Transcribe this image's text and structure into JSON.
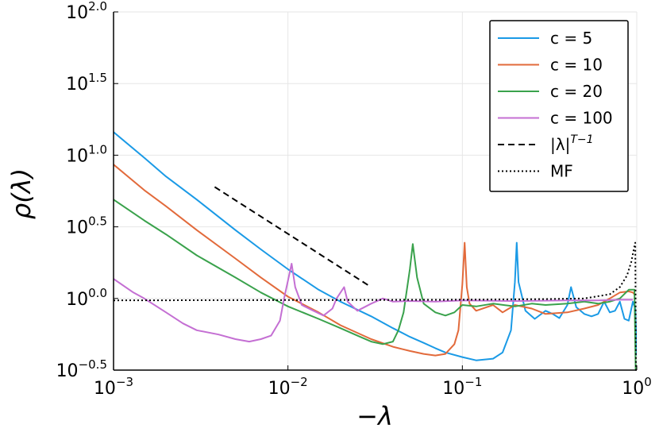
{
  "chart_data": {
    "type": "line",
    "xlabel": "−λ",
    "ylabel": "ρ(λ)",
    "x_scale": "log",
    "y_scale": "log",
    "xlim": [
      0.001,
      1
    ],
    "ylim": [
      0.3162,
      100
    ],
    "x_ticks": [
      {
        "value": 0.001,
        "base": "10",
        "exp": "−3"
      },
      {
        "value": 0.01,
        "base": "10",
        "exp": "−2"
      },
      {
        "value": 0.1,
        "base": "10",
        "exp": "−1"
      },
      {
        "value": 1,
        "base": "10",
        "exp": "0"
      }
    ],
    "y_ticks": [
      {
        "value": 0.3162,
        "base": "10",
        "exp": "−0.5"
      },
      {
        "value": 1,
        "base": "10",
        "exp": "0.0"
      },
      {
        "value": 3.162,
        "base": "10",
        "exp": "0.5"
      },
      {
        "value": 10,
        "base": "10",
        "exp": "1.0"
      },
      {
        "value": 31.62,
        "base": "10",
        "exp": "1.5"
      },
      {
        "value": 100,
        "base": "10",
        "exp": "2.0"
      }
    ],
    "grid": true,
    "legend_position": "top-right",
    "series": [
      {
        "name": "c = 5",
        "color": "#1a9ae6",
        "style": "solid",
        "points": [
          [
            0.001,
            14.5
          ],
          [
            0.0015,
            9.6
          ],
          [
            0.002,
            7.1
          ],
          [
            0.003,
            4.9
          ],
          [
            0.005,
            3.0
          ],
          [
            0.007,
            2.2
          ],
          [
            0.01,
            1.6
          ],
          [
            0.015,
            1.15
          ],
          [
            0.02,
            0.95
          ],
          [
            0.03,
            0.75
          ],
          [
            0.04,
            0.62
          ],
          [
            0.05,
            0.54
          ],
          [
            0.06,
            0.49
          ],
          [
            0.07,
            0.45
          ],
          [
            0.08,
            0.42
          ],
          [
            0.1,
            0.39
          ],
          [
            0.12,
            0.37
          ],
          [
            0.15,
            0.38
          ],
          [
            0.17,
            0.42
          ],
          [
            0.19,
            0.6
          ],
          [
            0.2,
            1.3
          ],
          [
            0.205,
            2.45
          ],
          [
            0.21,
            1.3
          ],
          [
            0.23,
            0.82
          ],
          [
            0.26,
            0.72
          ],
          [
            0.3,
            0.82
          ],
          [
            0.33,
            0.78
          ],
          [
            0.36,
            0.73
          ],
          [
            0.4,
            0.9
          ],
          [
            0.42,
            1.2
          ],
          [
            0.45,
            0.87
          ],
          [
            0.5,
            0.78
          ],
          [
            0.55,
            0.75
          ],
          [
            0.6,
            0.78
          ],
          [
            0.65,
            0.95
          ],
          [
            0.7,
            0.8
          ],
          [
            0.75,
            0.82
          ],
          [
            0.8,
            0.95
          ],
          [
            0.85,
            0.72
          ],
          [
            0.9,
            0.7
          ],
          [
            0.95,
            0.95
          ],
          [
            0.98,
            0.85
          ],
          [
            1.0,
            0.4
          ]
        ]
      },
      {
        "name": "c = 10",
        "color": "#e26a3b",
        "style": "solid",
        "points": [
          [
            0.001,
            8.6
          ],
          [
            0.0015,
            5.7
          ],
          [
            0.002,
            4.4
          ],
          [
            0.003,
            3.0
          ],
          [
            0.005,
            1.9
          ],
          [
            0.007,
            1.4
          ],
          [
            0.01,
            1.03
          ],
          [
            0.015,
            0.8
          ],
          [
            0.02,
            0.65
          ],
          [
            0.03,
            0.52
          ],
          [
            0.04,
            0.46
          ],
          [
            0.05,
            0.43
          ],
          [
            0.06,
            0.41
          ],
          [
            0.07,
            0.4
          ],
          [
            0.08,
            0.41
          ],
          [
            0.09,
            0.48
          ],
          [
            0.095,
            0.6
          ],
          [
            0.1,
            1.25
          ],
          [
            0.103,
            2.45
          ],
          [
            0.106,
            1.2
          ],
          [
            0.11,
            0.92
          ],
          [
            0.12,
            0.82
          ],
          [
            0.15,
            0.9
          ],
          [
            0.17,
            0.8
          ],
          [
            0.2,
            0.9
          ],
          [
            0.25,
            0.85
          ],
          [
            0.3,
            0.78
          ],
          [
            0.4,
            0.8
          ],
          [
            0.5,
            0.85
          ],
          [
            0.6,
            0.9
          ],
          [
            0.7,
            1.0
          ],
          [
            0.8,
            1.1
          ],
          [
            0.9,
            1.12
          ],
          [
            0.95,
            1.1
          ],
          [
            0.98,
            1.05
          ]
        ]
      },
      {
        "name": "c = 20",
        "color": "#3aa24c",
        "style": "solid",
        "points": [
          [
            0.001,
            4.9
          ],
          [
            0.0015,
            3.5
          ],
          [
            0.002,
            2.8
          ],
          [
            0.003,
            2.0
          ],
          [
            0.005,
            1.4
          ],
          [
            0.007,
            1.1
          ],
          [
            0.01,
            0.88
          ],
          [
            0.015,
            0.72
          ],
          [
            0.02,
            0.62
          ],
          [
            0.025,
            0.55
          ],
          [
            0.03,
            0.5
          ],
          [
            0.035,
            0.48
          ],
          [
            0.04,
            0.5
          ],
          [
            0.043,
            0.6
          ],
          [
            0.046,
            0.8
          ],
          [
            0.05,
            1.6
          ],
          [
            0.052,
            2.4
          ],
          [
            0.055,
            1.4
          ],
          [
            0.06,
            0.92
          ],
          [
            0.07,
            0.8
          ],
          [
            0.08,
            0.76
          ],
          [
            0.09,
            0.8
          ],
          [
            0.1,
            0.9
          ],
          [
            0.12,
            0.88
          ],
          [
            0.15,
            0.92
          ],
          [
            0.2,
            0.88
          ],
          [
            0.25,
            0.92
          ],
          [
            0.3,
            0.9
          ],
          [
            0.4,
            0.92
          ],
          [
            0.5,
            0.95
          ],
          [
            0.6,
            0.92
          ],
          [
            0.7,
            0.95
          ],
          [
            0.8,
            1.0
          ],
          [
            0.9,
            1.15
          ],
          [
            0.97,
            1.15
          ],
          [
            0.985,
            0.32
          ]
        ]
      },
      {
        "name": "c = 100",
        "color": "#c46fd3",
        "style": "solid",
        "points": [
          [
            0.001,
            1.37
          ],
          [
            0.0013,
            1.1
          ],
          [
            0.0015,
            1.0
          ],
          [
            0.002,
            0.8
          ],
          [
            0.0025,
            0.67
          ],
          [
            0.003,
            0.6
          ],
          [
            0.004,
            0.56
          ],
          [
            0.005,
            0.52
          ],
          [
            0.006,
            0.5
          ],
          [
            0.007,
            0.52
          ],
          [
            0.008,
            0.55
          ],
          [
            0.009,
            0.7
          ],
          [
            0.0095,
            1.0
          ],
          [
            0.0105,
            1.75
          ],
          [
            0.011,
            1.2
          ],
          [
            0.012,
            0.9
          ],
          [
            0.014,
            0.82
          ],
          [
            0.016,
            0.76
          ],
          [
            0.018,
            0.85
          ],
          [
            0.019,
            1.0
          ],
          [
            0.021,
            1.2
          ],
          [
            0.022,
            0.95
          ],
          [
            0.025,
            0.82
          ],
          [
            0.03,
            0.92
          ],
          [
            0.035,
            1.0
          ],
          [
            0.04,
            0.95
          ],
          [
            0.05,
            0.96
          ],
          [
            0.07,
            0.95
          ],
          [
            0.1,
            0.97
          ],
          [
            0.2,
            0.96
          ],
          [
            0.4,
            0.97
          ],
          [
            0.6,
            0.97
          ],
          [
            0.8,
            0.98
          ],
          [
            0.95,
            0.98
          ]
        ]
      },
      {
        "name": "|λ|^{T−1}",
        "color": "#000000",
        "style": "dashed",
        "points": [
          [
            0.0038,
            6.0
          ],
          [
            0.03,
            1.2
          ]
        ]
      },
      {
        "name": "MF",
        "color": "#000000",
        "style": "dotted",
        "points": [
          [
            0.001,
            0.97
          ],
          [
            0.1,
            0.98
          ],
          [
            0.3,
            0.99
          ],
          [
            0.5,
            1.0
          ],
          [
            0.7,
            1.07
          ],
          [
            0.8,
            1.2
          ],
          [
            0.88,
            1.45
          ],
          [
            0.93,
            1.8
          ],
          [
            0.965,
            2.25
          ],
          [
            0.98,
            2.45
          ],
          [
            0.99,
            0.3
          ]
        ]
      }
    ],
    "legend_labels": {
      "lambda_base": "|λ|",
      "lambda_exp": "T−1"
    }
  }
}
